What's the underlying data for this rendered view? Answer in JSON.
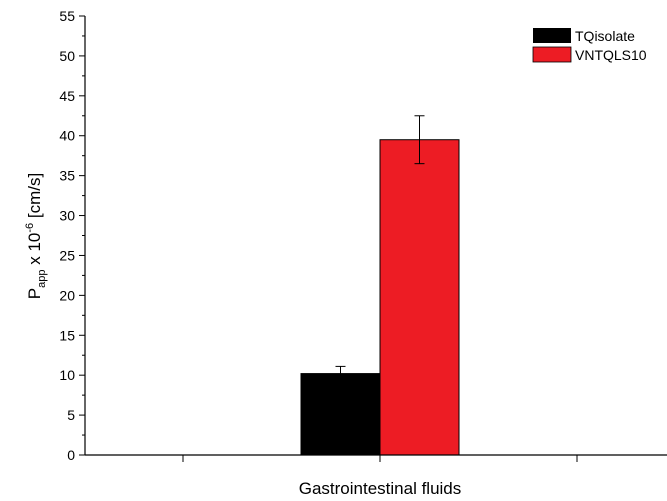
{
  "chart_data": {
    "type": "bar",
    "categories": [
      "Gastrointestinal fluids"
    ],
    "xlabel": "Gastrointestinal fluids",
    "ylabel": {
      "main": "P",
      "subscript": "app",
      "mid": " x 10",
      "superscript": "-6",
      "tail": " [cm/s]"
    },
    "ylim": [
      0,
      55
    ],
    "yticks": [
      0,
      5,
      10,
      15,
      20,
      25,
      30,
      35,
      40,
      45,
      50,
      55
    ],
    "grid": false,
    "legend_position": "top-right",
    "series": [
      {
        "name": "TQisolate",
        "values": [
          10.2
        ],
        "errors": [
          0.9
        ],
        "color": "#000000"
      },
      {
        "name": "VNTQLS10",
        "values": [
          39.5
        ],
        "errors": [
          3.0
        ],
        "color": "#ed1c24"
      }
    ]
  }
}
